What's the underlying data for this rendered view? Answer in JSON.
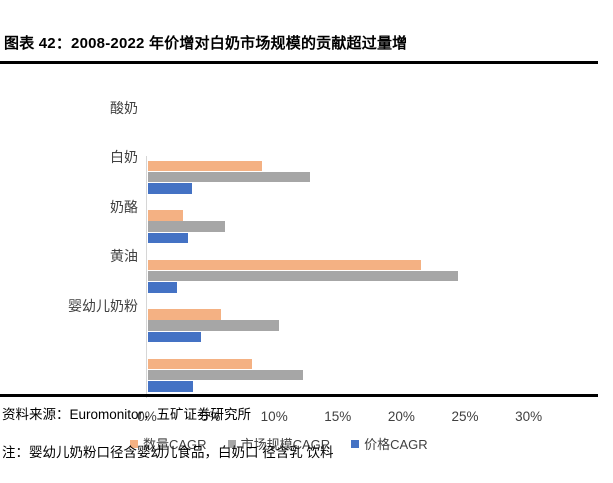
{
  "title": "图表 42：2008-2022 年价增对白奶市场规模的贡献超过量增",
  "chart_data": {
    "type": "bar",
    "orientation": "horizontal",
    "title": "",
    "xlabel": "",
    "ylabel": "",
    "xlim": [
      0,
      30
    ],
    "x_ticks": [
      "0%",
      "5%",
      "10%",
      "15%",
      "20%",
      "25%",
      "30%"
    ],
    "grid": false,
    "legend_position": "bottom",
    "categories": [
      "酸奶",
      "白奶",
      "奶酪",
      "黄油",
      "婴幼儿奶粉"
    ],
    "series": [
      {
        "name": "数量CAGR",
        "color": "#F4B183",
        "values": [
          9.0,
          2.8,
          21.5,
          5.8,
          8.2
        ]
      },
      {
        "name": "市场规模CAGR",
        "color": "#A6A6A6",
        "values": [
          12.8,
          6.1,
          24.4,
          10.3,
          12.2
        ]
      },
      {
        "name": "价格CAGR",
        "color": "#4472C4",
        "values": [
          3.5,
          3.2,
          2.3,
          4.2,
          3.6
        ]
      }
    ]
  },
  "source": "资料来源：Euromonitor，五矿证券研究所",
  "note": "注：婴幼儿奶粉口径含婴幼儿食品，白奶口 径含乳 饮料",
  "colors": {
    "series_volume": "#F4B183",
    "series_market_size": "#A6A6A6",
    "series_price": "#4472C4",
    "axis_line": "#D6D6D6",
    "text_muted": "#404040",
    "rule": "#000000"
  }
}
